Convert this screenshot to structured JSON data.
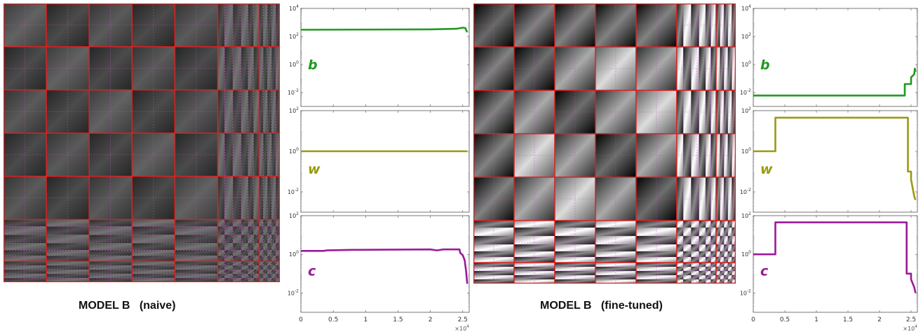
{
  "captions": {
    "left": "MODEL B   (naive)",
    "right": "MODEL B   (fine-tuned)"
  },
  "colors": {
    "b": "#1f9a1f",
    "w": "#9a9a10",
    "c": "#9a1a9a",
    "grid_major": "#dd2020",
    "grid_minor": "#c050c0"
  },
  "x_axis": {
    "ticks": [
      0,
      0.5,
      1,
      1.5,
      2,
      2.5
    ],
    "tick_labels": [
      "0",
      "0.5",
      "1",
      "1.5",
      "2",
      "2.5"
    ],
    "multiplier": "×10",
    "multiplier_exp": "4",
    "range": [
      0,
      26000
    ]
  },
  "chart_data": [
    {
      "type": "heatmap",
      "caption": "MODEL B   (naive)",
      "block_grid": "6 major blocks with nested finer sub-blocks toward bottom-right",
      "brightness": "low"
    },
    {
      "type": "line",
      "panel": "naive",
      "series_label": "b",
      "yscale": "log",
      "ylim": [
        0.001,
        10000
      ],
      "yticks": [
        "10^4",
        "10^2",
        "10^0",
        "10^-2"
      ],
      "x": [
        0,
        20000,
        24000,
        25000,
        25400,
        25500,
        25700
      ],
      "y": [
        300,
        320,
        350,
        420,
        400,
        300,
        200
      ]
    },
    {
      "type": "line",
      "panel": "naive",
      "series_label": "w",
      "yscale": "log",
      "ylim": [
        0.001,
        100
      ],
      "yticks": [
        "10^2",
        "10^0",
        "10^-2"
      ],
      "x": [
        0,
        25700
      ],
      "y": [
        1,
        1
      ]
    },
    {
      "type": "line",
      "panel": "naive",
      "series_label": "c",
      "yscale": "log",
      "ylim": [
        0.001,
        100
      ],
      "yticks": [
        "10^2",
        "10^0",
        "10^-2"
      ],
      "x": [
        0,
        3500,
        4000,
        8000,
        20000,
        21000,
        22000,
        24500,
        24600,
        25000,
        25300,
        25500,
        25700
      ],
      "y": [
        1.5,
        1.5,
        1.6,
        1.7,
        1.8,
        1.6,
        1.8,
        1.8,
        1.2,
        0.9,
        0.5,
        0.15,
        0.03
      ]
    },
    {
      "type": "heatmap",
      "caption": "MODEL B   (fine-tuned)",
      "block_grid": "6 major blocks with nested finer sub-blocks toward bottom-right",
      "brightness": "higher contrast, bright diagonal stripes"
    },
    {
      "type": "line",
      "panel": "fine-tuned",
      "series_label": "b",
      "yscale": "log",
      "ylim": [
        0.001,
        10000
      ],
      "yticks": [
        "10^4",
        "10^2",
        "10^0",
        "10^-2"
      ],
      "x": [
        0,
        24000,
        24000,
        25000,
        25000,
        25500,
        25600,
        25700
      ],
      "y": [
        0.006,
        0.006,
        0.04,
        0.04,
        0.12,
        0.2,
        0.5,
        0.3
      ]
    },
    {
      "type": "line",
      "panel": "fine-tuned",
      "series_label": "w",
      "yscale": "log",
      "ylim": [
        0.001,
        100
      ],
      "yticks": [
        "10^2",
        "10^0",
        "10^-2"
      ],
      "x": [
        0,
        3500,
        3500,
        24500,
        24500,
        25000,
        25000,
        25500,
        25700
      ],
      "y": [
        1,
        1,
        45,
        45,
        0.1,
        0.1,
        0.04,
        0.006,
        0.004
      ]
    },
    {
      "type": "line",
      "panel": "fine-tuned",
      "series_label": "c",
      "yscale": "log",
      "ylim": [
        0.001,
        100
      ],
      "yticks": [
        "10^2",
        "10^0",
        "10^-2"
      ],
      "x": [
        0,
        3500,
        3500,
        24300,
        24300,
        25000,
        25000,
        25500,
        25700
      ],
      "y": [
        1,
        1,
        45,
        45,
        0.1,
        0.1,
        0.05,
        0.02,
        0.01
      ]
    }
  ]
}
